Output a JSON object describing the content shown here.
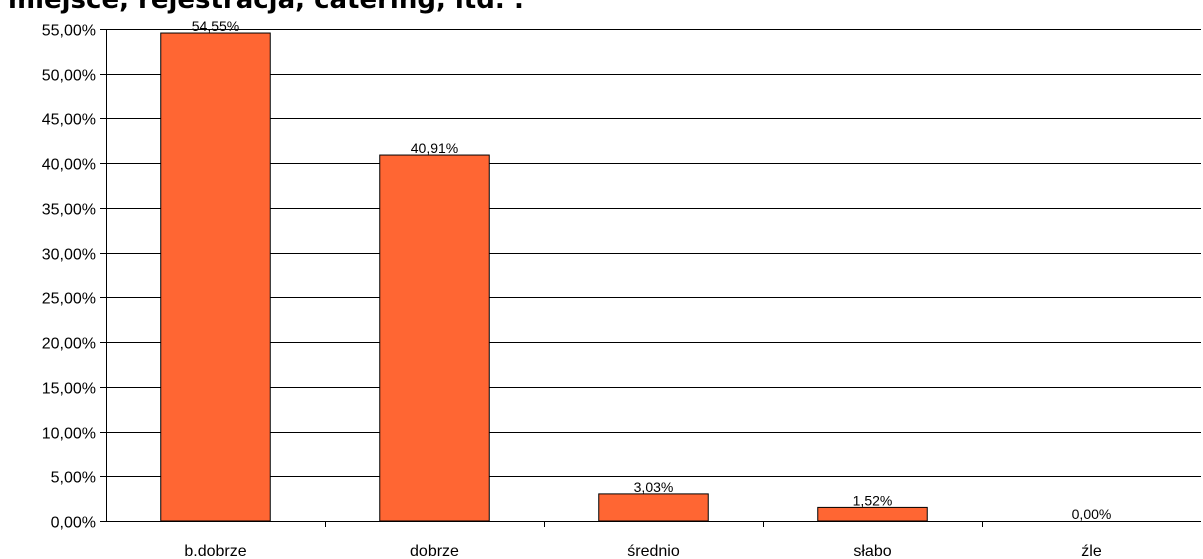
{
  "chart_data": {
    "type": "bar",
    "title": "miejsce, rejestracja, catering, itd. :",
    "xlabel": "",
    "ylabel": "",
    "categories": [
      "b.dobrze",
      "dobrze",
      "średnio",
      "słabo",
      "źle"
    ],
    "values": [
      54.55,
      40.91,
      3.03,
      1.52,
      0.0
    ],
    "value_labels": [
      "54,55%",
      "40,91%",
      "3,03%",
      "1,52%",
      "0,00%"
    ],
    "ylim": [
      0,
      55
    ],
    "yticks": [
      {
        "value": 55,
        "label": "55,00%"
      },
      {
        "value": 50,
        "label": "50,00%"
      },
      {
        "value": 45,
        "label": "45,00%"
      },
      {
        "value": 40,
        "label": "40,00%"
      },
      {
        "value": 35,
        "label": "35,00%"
      },
      {
        "value": 30,
        "label": "30,00%"
      },
      {
        "value": 25,
        "label": "25,00%"
      },
      {
        "value": 20,
        "label": "20,00%"
      },
      {
        "value": 15,
        "label": "15,00%"
      },
      {
        "value": 10,
        "label": "10,00%"
      },
      {
        "value": 5,
        "label": "5,00%"
      },
      {
        "value": 0,
        "label": "0,00%"
      }
    ],
    "grid": true,
    "legend": "none",
    "colors": {
      "bar": "#FF6633",
      "bar_edge": "#000000",
      "grid": "#000000",
      "axis": "#000000",
      "background": "#FFFFFF"
    }
  }
}
